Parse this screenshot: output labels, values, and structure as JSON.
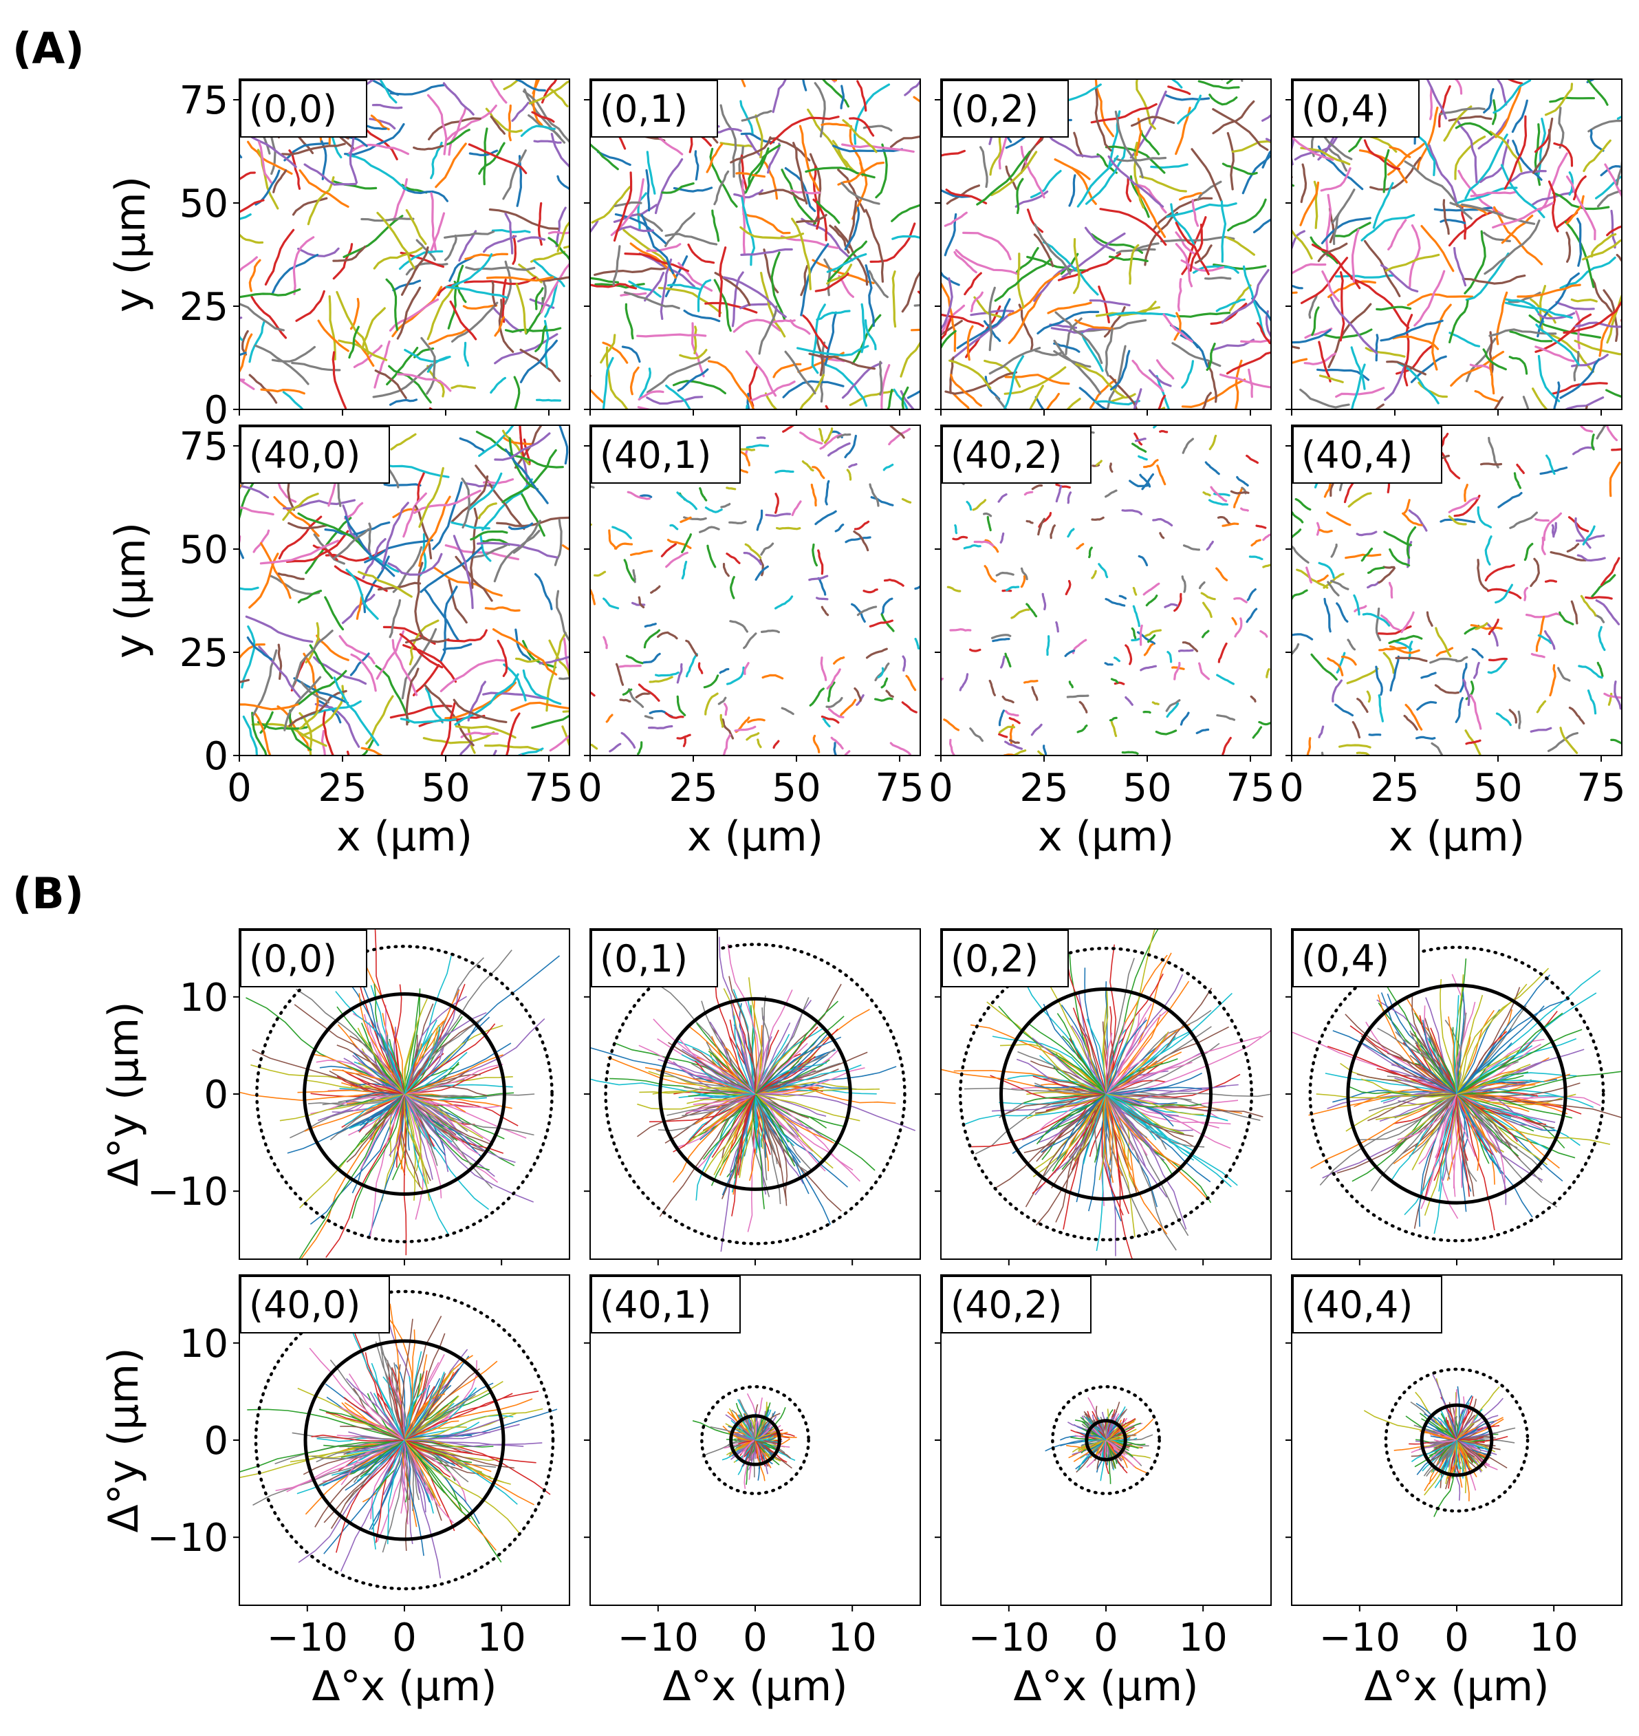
{
  "figure": {
    "panel_labels": [
      "(A)",
      "(B)"
    ],
    "conditions": [
      "(0,0)",
      "(0,1)",
      "(0,2)",
      "(0,4)",
      "(40,0)",
      "(40,1)",
      "(40,2)",
      "(40,4)"
    ]
  },
  "chart_data": [
    {
      "panel": "(A)",
      "type": "line",
      "description_kind": "trajectory",
      "xlabel": "x (μm)",
      "ylabel": "y (μm)",
      "xlim": [
        0,
        80
      ],
      "ylim": [
        0,
        80
      ],
      "xticks": [
        0,
        25,
        50,
        75
      ],
      "yticks": [
        0,
        25,
        50,
        75
      ],
      "grid": false,
      "subplots": [
        {
          "tag": "(0,0)",
          "trajectory_length_um": 14,
          "n_tracks": 220
        },
        {
          "tag": "(0,1)",
          "trajectory_length_um": 15,
          "n_tracks": 220
        },
        {
          "tag": "(0,2)",
          "trajectory_length_um": 15,
          "n_tracks": 220
        },
        {
          "tag": "(0,4)",
          "trajectory_length_um": 15,
          "n_tracks": 230
        },
        {
          "tag": "(40,0)",
          "trajectory_length_um": 16,
          "n_tracks": 220
        },
        {
          "tag": "(40,1)",
          "trajectory_length_um": 5,
          "n_tracks": 190
        },
        {
          "tag": "(40,2)",
          "trajectory_length_um": 4,
          "n_tracks": 190
        },
        {
          "tag": "(40,4)",
          "trajectory_length_um": 7,
          "n_tracks": 200
        }
      ]
    },
    {
      "panel": "(B)",
      "type": "line",
      "xlabel": "Δ°x (μm)",
      "ylabel": "Δ°y (μm)",
      "xlim": [
        -17,
        17
      ],
      "ylim": [
        -17,
        17
      ],
      "xticks": [
        -10,
        0,
        10
      ],
      "yticks": [
        -10,
        0,
        10
      ],
      "tick_labels_x": [
        "−10",
        "0",
        "10"
      ],
      "tick_labels_y": [
        "−10",
        "0",
        "10"
      ],
      "grid": false,
      "subplots": [
        {
          "tag": "(0,0)",
          "solid_circle_radius": 10.3,
          "dotted_circle_radius": 15.2,
          "spread_um": 10
        },
        {
          "tag": "(0,1)",
          "solid_circle_radius": 9.8,
          "dotted_circle_radius": 15.4,
          "spread_um": 10
        },
        {
          "tag": "(0,2)",
          "solid_circle_radius": 10.8,
          "dotted_circle_radius": 15.0,
          "spread_um": 11
        },
        {
          "tag": "(0,4)",
          "solid_circle_radius": 11.2,
          "dotted_circle_radius": 15.1,
          "spread_um": 11
        },
        {
          "tag": "(40,0)",
          "solid_circle_radius": 10.2,
          "dotted_circle_radius": 15.3,
          "spread_um": 10
        },
        {
          "tag": "(40,1)",
          "solid_circle_radius": 2.5,
          "dotted_circle_radius": 5.5,
          "spread_um": 3
        },
        {
          "tag": "(40,2)",
          "solid_circle_radius": 2.0,
          "dotted_circle_radius": 5.5,
          "spread_um": 3
        },
        {
          "tag": "(40,4)",
          "solid_circle_radius": 3.6,
          "dotted_circle_radius": 7.3,
          "spread_um": 4
        }
      ]
    }
  ],
  "colors": {
    "series_palette": [
      "#1f77b4",
      "#ff7f0e",
      "#2ca02c",
      "#d62728",
      "#9467bd",
      "#8c564b",
      "#e377c2",
      "#7f7f7f",
      "#bcbd22",
      "#17becf"
    ],
    "circle": "#000000",
    "axes": "#000000"
  }
}
